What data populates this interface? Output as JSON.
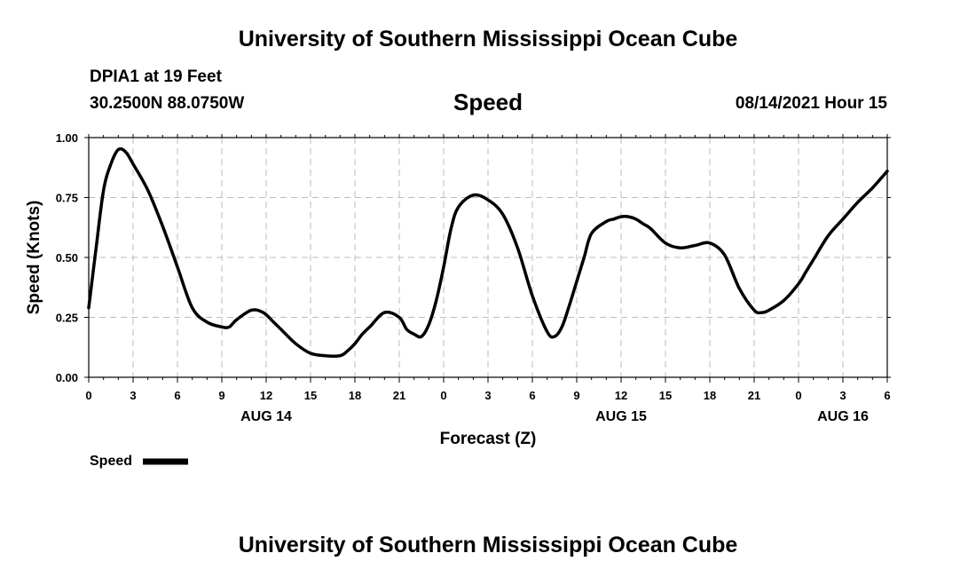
{
  "header": {
    "title": "University of Southern Mississippi Ocean Cube",
    "station": "DPIA1 at 19 Feet",
    "coords": "30.2500N  88.0750W",
    "variable": "Speed",
    "datetime": "08/14/2021 Hour 15"
  },
  "footer": {
    "title": "University of Southern Mississippi Ocean Cube"
  },
  "chart_data": {
    "type": "line",
    "ylabel": "Speed (Knots)",
    "xlabel": "Forecast (Z)",
    "ylim": [
      0,
      1
    ],
    "xlim": [
      0,
      54
    ],
    "yticks": [
      "0.00",
      "0.25",
      "0.50",
      "0.75",
      "1.00"
    ],
    "xtick_labels": [
      "0",
      "3",
      "6",
      "9",
      "12",
      "15",
      "18",
      "21",
      "0",
      "3",
      "6",
      "9",
      "12",
      "15",
      "18",
      "21",
      "0",
      "3",
      "6"
    ],
    "date_labels": [
      {
        "label": "AUG 14",
        "x": 12
      },
      {
        "label": "AUG 15",
        "x": 36
      },
      {
        "label": "AUG 16",
        "x": 51
      }
    ],
    "grid": true,
    "grid_style": "dashed",
    "legend_position": "bottom-left",
    "line_color": "#000000",
    "series": [
      {
        "name": "Speed",
        "x": [
          0,
          0.5,
          1,
          1.5,
          2,
          2.5,
          3,
          4,
          5,
          6,
          7,
          8,
          9,
          9.5,
          10,
          11,
          11.8,
          12.5,
          13,
          14,
          15,
          16,
          17,
          17.5,
          18,
          18.5,
          19,
          20,
          21,
          21.5,
          22,
          22.5,
          23,
          23.5,
          24,
          24.5,
          25,
          26,
          27,
          28,
          29,
          30,
          31,
          31.5,
          32,
          32.5,
          33,
          33.5,
          34,
          35,
          35.5,
          36,
          36.5,
          37,
          37.5,
          38,
          39,
          40,
          41,
          42,
          43,
          44,
          45,
          45.5,
          46,
          47,
          48,
          48.5,
          49,
          50,
          51,
          52,
          53,
          54
        ],
        "y": [
          0.29,
          0.54,
          0.78,
          0.89,
          0.95,
          0.94,
          0.89,
          0.78,
          0.63,
          0.46,
          0.29,
          0.23,
          0.21,
          0.21,
          0.24,
          0.28,
          0.27,
          0.23,
          0.2,
          0.14,
          0.1,
          0.09,
          0.09,
          0.11,
          0.14,
          0.18,
          0.21,
          0.27,
          0.25,
          0.2,
          0.18,
          0.17,
          0.22,
          0.32,
          0.46,
          0.62,
          0.71,
          0.76,
          0.74,
          0.68,
          0.54,
          0.34,
          0.19,
          0.17,
          0.21,
          0.3,
          0.4,
          0.5,
          0.6,
          0.65,
          0.66,
          0.67,
          0.67,
          0.66,
          0.64,
          0.62,
          0.56,
          0.54,
          0.55,
          0.56,
          0.51,
          0.37,
          0.28,
          0.27,
          0.28,
          0.32,
          0.39,
          0.44,
          0.49,
          0.59,
          0.66,
          0.73,
          0.79,
          0.86
        ]
      }
    ]
  }
}
